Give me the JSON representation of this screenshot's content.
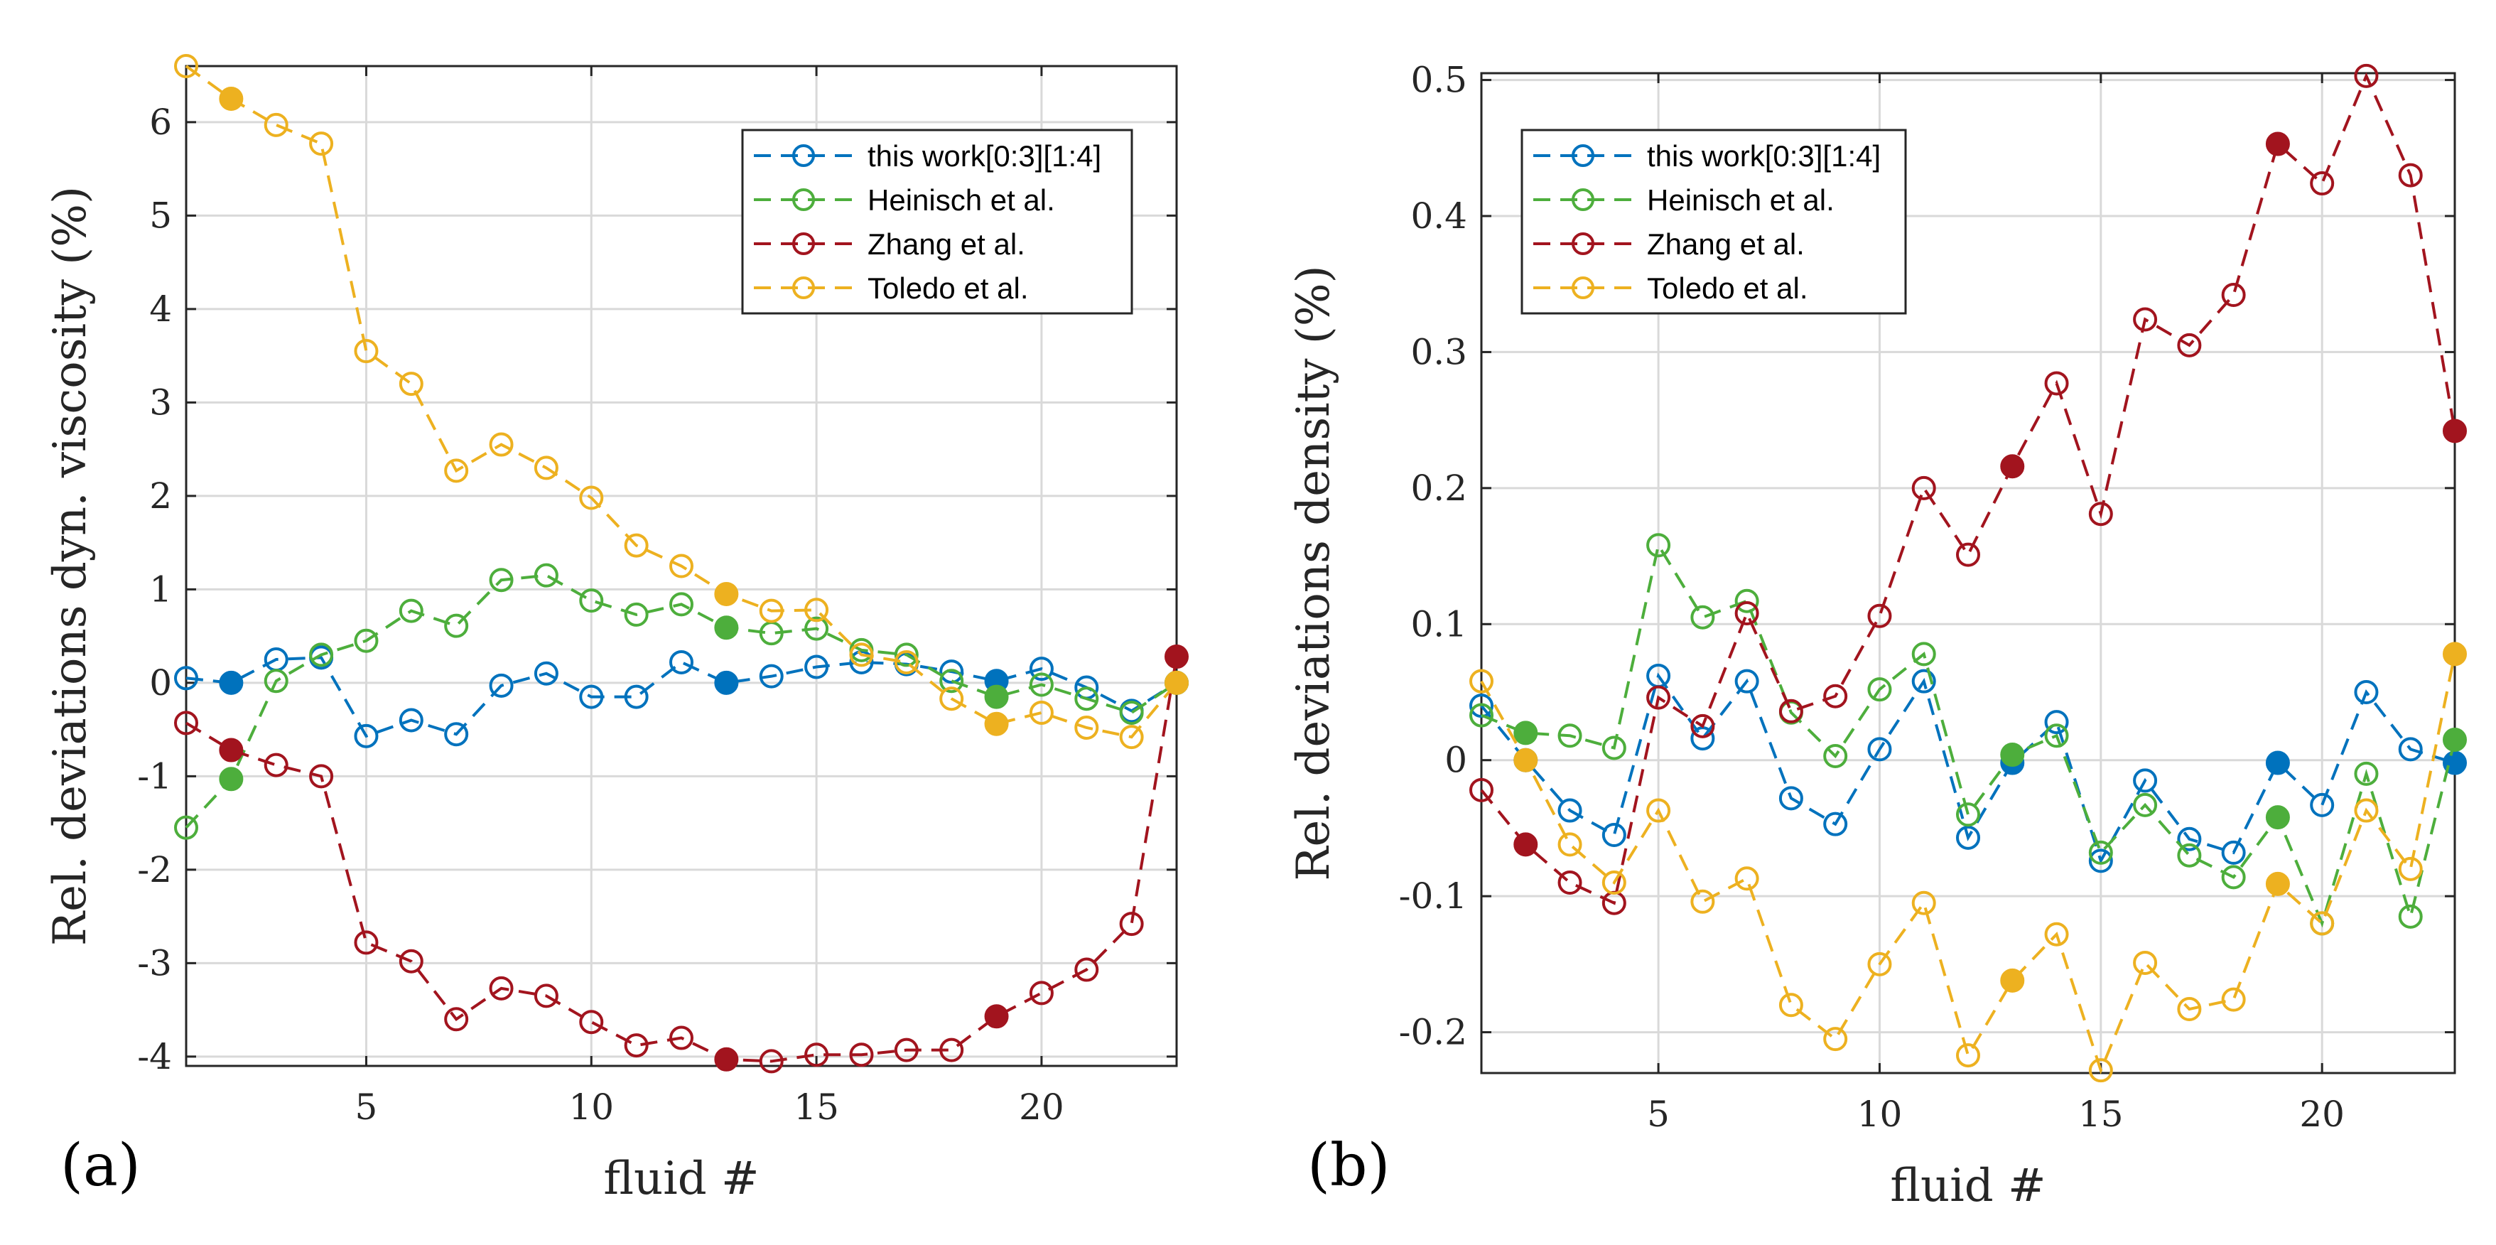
{
  "colors": {
    "this_work": "#0072BD",
    "heinisch": "#4DAE3C",
    "zhang": "#A2141E",
    "toledo": "#EDB120"
  },
  "chart_data": [
    {
      "type": "line",
      "panel_label": "(a)",
      "xlabel": "fluid #",
      "ylabel": "Rel. deviations dyn. viscosity (%)",
      "xlim": [
        1,
        23
      ],
      "ylim": [
        -4.1,
        6.6
      ],
      "xticks": [
        5,
        10,
        15,
        20
      ],
      "yticks": [
        -4,
        -3,
        -2,
        -1,
        0,
        1,
        2,
        3,
        4,
        5,
        6
      ],
      "grid": true,
      "legend_position": "top-right",
      "x": [
        1,
        2,
        3,
        4,
        5,
        6,
        7,
        8,
        9,
        10,
        11,
        12,
        13,
        14,
        15,
        16,
        17,
        18,
        19,
        20,
        21,
        22,
        23
      ],
      "filled_points": [
        2,
        13,
        19,
        23
      ],
      "series": [
        {
          "name": "this work[0:3][1:4]",
          "color_key": "this_work",
          "values": [
            0.05,
            0.0,
            0.25,
            0.27,
            -0.57,
            -0.4,
            -0.55,
            -0.03,
            0.1,
            -0.15,
            -0.15,
            0.22,
            0.0,
            0.07,
            0.17,
            0.22,
            0.2,
            0.12,
            0.02,
            0.15,
            -0.05,
            -0.3,
            0.0
          ]
        },
        {
          "name": "Heinisch et al.",
          "color_key": "heinisch",
          "values": [
            -1.55,
            -1.03,
            0.02,
            0.3,
            0.45,
            0.77,
            0.61,
            1.1,
            1.15,
            0.88,
            0.73,
            0.84,
            0.59,
            0.53,
            0.58,
            0.35,
            0.3,
            0.02,
            -0.15,
            -0.02,
            -0.17,
            -0.32,
            0.0
          ]
        },
        {
          "name": "Zhang et al.",
          "color_key": "zhang",
          "values": [
            -0.43,
            -0.72,
            -0.88,
            -1.0,
            -2.78,
            -2.98,
            -3.6,
            -3.27,
            -3.35,
            -3.63,
            -3.88,
            -3.8,
            -4.03,
            -4.05,
            -3.98,
            -3.98,
            -3.93,
            -3.93,
            -3.57,
            -3.32,
            -3.07,
            -2.58,
            0.28
          ]
        },
        {
          "name": "Toledo et al.",
          "color_key": "toledo",
          "values": [
            6.6,
            6.25,
            5.97,
            5.77,
            3.55,
            3.2,
            2.27,
            2.55,
            2.3,
            1.98,
            1.47,
            1.25,
            0.95,
            0.77,
            0.78,
            0.3,
            0.22,
            -0.17,
            -0.44,
            -0.32,
            -0.48,
            -0.58,
            0.0
          ]
        }
      ]
    },
    {
      "type": "line",
      "panel_label": "(b)",
      "xlabel": "fluid #",
      "ylabel": "Rel. deviations density (%)",
      "xlim": [
        1,
        23
      ],
      "ylim": [
        -0.23,
        0.505
      ],
      "xticks": [
        5,
        10,
        15,
        20
      ],
      "yticks": [
        -0.2,
        -0.1,
        0,
        0.1,
        0.2,
        0.3,
        0.4,
        0.5
      ],
      "ytick_labels": [
        "-0.2",
        "-0.1",
        "0",
        "0.1",
        "0.2",
        "0.3",
        "0.4",
        "0.5"
      ],
      "grid": true,
      "legend_position": "top-left",
      "x": [
        1,
        2,
        3,
        4,
        5,
        6,
        7,
        8,
        9,
        10,
        11,
        12,
        13,
        14,
        15,
        16,
        17,
        18,
        19,
        20,
        21,
        22,
        23
      ],
      "filled_points": [
        2,
        13,
        19,
        23
      ],
      "series": [
        {
          "name": "this work[0:3][1:4]",
          "color_key": "this_work",
          "values": [
            0.04,
            0.0,
            -0.037,
            -0.055,
            0.062,
            0.016,
            0.058,
            -0.028,
            -0.047,
            0.008,
            0.058,
            -0.057,
            -0.002,
            0.028,
            -0.074,
            -0.015,
            -0.058,
            -0.068,
            -0.002,
            -0.033,
            0.05,
            0.008,
            -0.002
          ]
        },
        {
          "name": "Heinisch et al.",
          "color_key": "heinisch",
          "values": [
            0.033,
            0.02,
            0.018,
            0.009,
            0.158,
            0.105,
            0.117,
            0.035,
            0.003,
            0.052,
            0.078,
            -0.04,
            0.004,
            0.018,
            -0.068,
            -0.033,
            -0.07,
            -0.086,
            -0.042,
            -0.12,
            -0.01,
            -0.115,
            0.015
          ]
        },
        {
          "name": "Zhang et al.",
          "color_key": "zhang",
          "values": [
            -0.022,
            -0.062,
            -0.09,
            -0.105,
            0.046,
            0.025,
            0.108,
            0.036,
            0.047,
            0.106,
            0.2,
            0.151,
            0.216,
            0.277,
            0.181,
            0.324,
            0.305,
            0.342,
            0.453,
            0.424,
            0.503,
            0.43,
            0.242
          ]
        },
        {
          "name": "Toledo et al.",
          "color_key": "toledo",
          "values": [
            0.058,
            0.0,
            -0.062,
            -0.09,
            -0.037,
            -0.104,
            -0.087,
            -0.18,
            -0.205,
            -0.15,
            -0.105,
            -0.217,
            -0.162,
            -0.128,
            -0.228,
            -0.149,
            -0.183,
            -0.176,
            -0.091,
            -0.12,
            -0.037,
            -0.08,
            0.078
          ]
        }
      ]
    }
  ]
}
